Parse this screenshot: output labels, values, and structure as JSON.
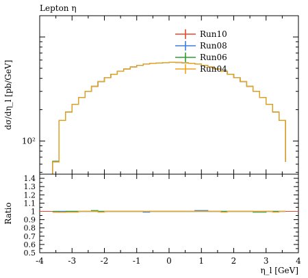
{
  "chart_data": {
    "type": "line",
    "title": "Lepton η",
    "xlabel": "η_l [GeV]",
    "ylabel": "dσ/dη_l [pb/GeV]",
    "y_scale": "log",
    "xlim": [
      -4,
      4
    ],
    "ylim": [
      48,
      1600
    ],
    "y_tick_labels": [
      "10²"
    ],
    "x_tick_labels": [
      "-4",
      "-3",
      "-2",
      "-1",
      "0",
      "1",
      "2",
      "3",
      "4"
    ],
    "legend_position": "top-right",
    "bin_edges": [
      -3.6,
      -3.4,
      -3.2,
      -3.0,
      -2.8,
      -2.6,
      -2.4,
      -2.2,
      -2.0,
      -1.8,
      -1.6,
      -1.4,
      -1.2,
      -1.0,
      -0.8,
      -0.6,
      -0.4,
      -0.2,
      0.0,
      0.2,
      0.4,
      0.6,
      0.8,
      1.0,
      1.2,
      1.4,
      1.6,
      1.8,
      2.0,
      2.2,
      2.4,
      2.6,
      2.8,
      3.0,
      3.2,
      3.4,
      3.6
    ],
    "series": [
      {
        "name": "Run10",
        "color": "#e8452c",
        "values": [
          63,
          158,
          190,
          225,
          262,
          300,
          335,
          372,
          405,
          438,
          468,
          492,
          515,
          532,
          548,
          557,
          563,
          567,
          569,
          568,
          564,
          557,
          548,
          532,
          515,
          492,
          468,
          438,
          405,
          372,
          335,
          300,
          262,
          225,
          190,
          158,
          63
        ]
      },
      {
        "name": "Run08",
        "color": "#3a7ddc",
        "values": [
          63,
          158,
          190,
          225,
          262,
          300,
          335,
          372,
          405,
          438,
          468,
          492,
          515,
          532,
          548,
          557,
          563,
          567,
          569,
          568,
          564,
          557,
          548,
          532,
          515,
          492,
          468,
          438,
          405,
          372,
          335,
          300,
          262,
          225,
          190,
          158,
          63
        ]
      },
      {
        "name": "Run06",
        "color": "#2e9e2e",
        "values": [
          64,
          158,
          190,
          225,
          262,
          300,
          335,
          372,
          405,
          438,
          468,
          492,
          515,
          532,
          548,
          557,
          563,
          567,
          569,
          568,
          564,
          557,
          548,
          532,
          515,
          492,
          468,
          438,
          405,
          372,
          335,
          300,
          262,
          225,
          190,
          158,
          63
        ]
      },
      {
        "name": "Run04",
        "color": "#f5a21b",
        "values": [
          63,
          158,
          190,
          225,
          262,
          300,
          335,
          372,
          405,
          438,
          468,
          492,
          515,
          532,
          548,
          557,
          563,
          567,
          569,
          568,
          564,
          557,
          548,
          532,
          515,
          492,
          468,
          438,
          405,
          372,
          335,
          300,
          262,
          225,
          190,
          158,
          63
        ]
      }
    ],
    "ratio_panel": {
      "ylabel": "Ratio",
      "ylim": [
        0.5,
        1.45
      ],
      "y_tick_labels": [
        "1.4",
        "1.3",
        "1.2",
        "1.1",
        "1",
        "0.9",
        "0.8",
        "0.7",
        "0.6",
        "0.5"
      ],
      "y_tick_values": [
        1.4,
        1.3,
        1.2,
        1.1,
        1.0,
        0.9,
        0.8,
        0.7,
        0.6,
        0.5
      ],
      "reference_line": 1.0,
      "series": [
        {
          "name": "Run10",
          "color": "#e8452c",
          "values": [
            1.0,
            1.0,
            1.0,
            1.0,
            1.0,
            1.0,
            1.0,
            1.0,
            1.0,
            1.0,
            1.0,
            1.0,
            1.0,
            1.0,
            1.0,
            1.0,
            1.0,
            1.0,
            1.0,
            1.0,
            1.0,
            1.0,
            1.0,
            1.0,
            1.0,
            1.0,
            1.0,
            1.0,
            1.0,
            1.0,
            1.0,
            1.0,
            1.0,
            1.0,
            1.0,
            1.0,
            1.0
          ]
        },
        {
          "name": "Run08",
          "color": "#3a7ddc",
          "values": [
            0.99,
            1.0,
            1.0,
            1.0,
            1.0,
            1.0,
            1.0,
            1.0,
            1.0,
            1.0,
            1.0,
            1.0,
            1.0,
            1.0,
            0.99,
            1.0,
            1.0,
            1.0,
            1.0,
            1.0,
            1.0,
            1.0,
            1.01,
            1.01,
            1.0,
            1.0,
            1.0,
            1.0,
            1.0,
            1.0,
            1.0,
            1.0,
            1.0,
            1.0,
            1.0,
            1.0,
            1.0
          ]
        },
        {
          "name": "Run06",
          "color": "#2e9e2e",
          "values": [
            1.0,
            0.99,
            1.0,
            1.0,
            1.0,
            1.0,
            1.01,
            1.0,
            1.0,
            1.0,
            1.0,
            1.0,
            1.0,
            1.0,
            1.0,
            1.0,
            1.0,
            1.0,
            1.0,
            1.0,
            1.0,
            1.0,
            1.0,
            1.0,
            1.0,
            1.0,
            1.0,
            1.0,
            1.0,
            1.0,
            1.0,
            0.99,
            0.99,
            1.0,
            1.0,
            1.0,
            1.0
          ]
        },
        {
          "name": "Run04",
          "color": "#f5a21b",
          "values": [
            0.99,
            0.99,
            0.99,
            0.99,
            1.0,
            1.0,
            1.0,
            0.99,
            1.0,
            1.0,
            1.0,
            1.0,
            1.0,
            1.0,
            1.0,
            1.0,
            1.0,
            1.0,
            1.0,
            1.0,
            1.0,
            1.0,
            1.0,
            1.0,
            1.0,
            1.0,
            0.99,
            1.0,
            1.0,
            1.0,
            1.0,
            1.0,
            1.0,
            1.0,
            0.99,
            1.0,
            1.0
          ]
        }
      ]
    }
  }
}
